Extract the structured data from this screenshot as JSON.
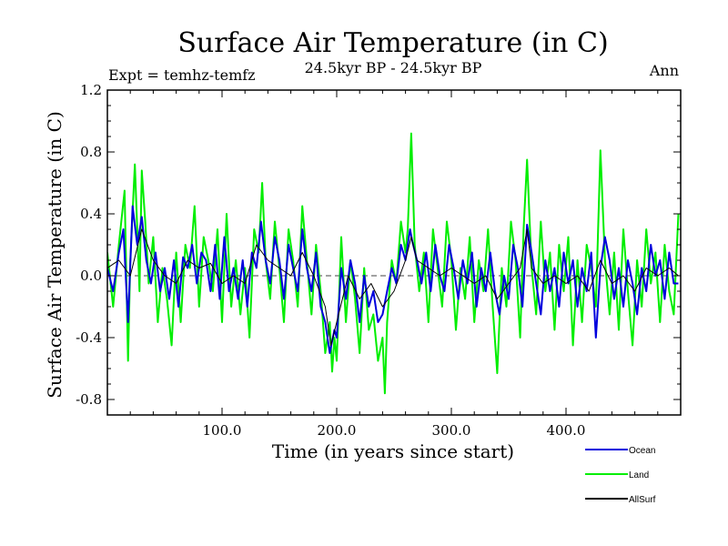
{
  "chart_data": {
    "type": "line",
    "title": "Surface Air Temperature (in C)",
    "subtitle": "24.5kyr BP - 24.5kyr BP",
    "left_label": "Expt = temhz-temfz",
    "right_label": "Ann",
    "xlabel": "Time (in years since start)",
    "ylabel": "Surface Air Temperature (in C)",
    "xlim": [
      0,
      500
    ],
    "ylim": [
      -0.9,
      1.2
    ],
    "x_ticks": [
      {
        "value": 100,
        "label": "100.0"
      },
      {
        "value": 200,
        "label": "200.0"
      },
      {
        "value": 300,
        "label": "300.0"
      },
      {
        "value": 400,
        "label": "400.0"
      }
    ],
    "y_ticks": [
      {
        "value": 1.2,
        "label": "1.2"
      },
      {
        "value": 0.8,
        "label": "0.8"
      },
      {
        "value": 0.4,
        "label": "0.4"
      },
      {
        "value": 0.0,
        "label": "0.0"
      },
      {
        "value": -0.4,
        "label": "-0.4"
      },
      {
        "value": -0.8,
        "label": "-0.8"
      }
    ],
    "zero_line": true,
    "series": [
      {
        "name": "Land",
        "color": "#00ee00",
        "x": [
          0,
          5,
          10,
          15,
          18,
          20,
          24,
          28,
          30,
          33,
          36,
          40,
          44,
          48,
          52,
          56,
          60,
          64,
          68,
          72,
          76,
          80,
          84,
          88,
          92,
          96,
          100,
          104,
          108,
          112,
          116,
          120,
          124,
          128,
          132,
          135,
          138,
          142,
          146,
          150,
          154,
          158,
          162,
          166,
          170,
          174,
          178,
          182,
          186,
          190,
          194,
          196,
          198,
          200,
          204,
          208,
          212,
          216,
          220,
          224,
          228,
          232,
          236,
          240,
          242,
          244,
          248,
          252,
          256,
          260,
          262,
          265,
          268,
          272,
          276,
          280,
          284,
          288,
          292,
          296,
          300,
          304,
          308,
          312,
          316,
          320,
          324,
          328,
          332,
          336,
          340,
          344,
          348,
          352,
          356,
          360,
          363,
          366,
          370,
          374,
          378,
          382,
          386,
          390,
          394,
          398,
          402,
          406,
          410,
          414,
          418,
          422,
          426,
          430,
          434,
          438,
          442,
          446,
          450,
          454,
          458,
          462,
          466,
          470,
          474,
          478,
          482,
          486,
          490,
          494,
          498
        ],
        "values": [
          0.15,
          -0.2,
          0.2,
          0.55,
          -0.55,
          0.1,
          0.72,
          -0.1,
          0.68,
          0.35,
          -0.05,
          0.25,
          -0.3,
          0.05,
          -0.15,
          -0.45,
          0.15,
          -0.3,
          0.2,
          0.05,
          0.45,
          -0.2,
          0.25,
          0.1,
          -0.1,
          0.3,
          -0.3,
          0.4,
          -0.2,
          0.1,
          -0.25,
          0.05,
          -0.4,
          0.3,
          0.15,
          0.6,
          0.1,
          -0.15,
          0.35,
          0.05,
          -0.3,
          0.3,
          0.1,
          -0.2,
          0.45,
          0.1,
          -0.25,
          0.2,
          -0.1,
          -0.5,
          -0.3,
          -0.62,
          -0.4,
          -0.55,
          0.25,
          -0.3,
          0.1,
          -0.15,
          -0.5,
          0.05,
          -0.35,
          -0.25,
          -0.55,
          -0.4,
          -0.76,
          -0.3,
          0.1,
          -0.05,
          0.35,
          0.15,
          0.3,
          0.92,
          0.2,
          -0.1,
          0.15,
          -0.3,
          0.3,
          0.05,
          -0.2,
          0.35,
          0.1,
          -0.35,
          0.05,
          -0.15,
          0.25,
          -0.3,
          0.1,
          -0.1,
          0.3,
          -0.2,
          -0.63,
          0.05,
          -0.2,
          0.35,
          0.1,
          -0.4,
          0.3,
          0.75,
          0.05,
          -0.25,
          0.35,
          -0.1,
          0.15,
          -0.35,
          0.2,
          -0.1,
          0.25,
          -0.45,
          0.1,
          -0.3,
          0.2,
          0.05,
          -0.2,
          0.81,
          0.1,
          -0.25,
          0.15,
          -0.35,
          0.3,
          -0.1,
          -0.45,
          0.1,
          -0.2,
          0.3,
          -0.05,
          0.15,
          -0.3,
          0.2,
          -0.1,
          -0.25,
          0.4
        ]
      },
      {
        "name": "Ocean",
        "color": "#0000dd",
        "x": [
          0,
          5,
          10,
          14,
          18,
          22,
          26,
          30,
          34,
          38,
          42,
          46,
          50,
          54,
          58,
          62,
          66,
          70,
          74,
          78,
          82,
          86,
          90,
          94,
          98,
          102,
          106,
          110,
          114,
          118,
          122,
          126,
          130,
          134,
          138,
          142,
          146,
          150,
          154,
          158,
          162,
          166,
          170,
          174,
          178,
          182,
          186,
          190,
          194,
          198,
          200,
          204,
          208,
          212,
          216,
          220,
          224,
          228,
          232,
          236,
          240,
          244,
          248,
          252,
          256,
          260,
          264,
          266,
          270,
          274,
          278,
          282,
          286,
          290,
          294,
          298,
          302,
          306,
          310,
          314,
          318,
          322,
          326,
          330,
          334,
          338,
          342,
          346,
          350,
          354,
          358,
          362,
          366,
          370,
          374,
          378,
          382,
          386,
          390,
          394,
          398,
          402,
          406,
          410,
          414,
          418,
          422,
          426,
          430,
          434,
          438,
          442,
          446,
          450,
          454,
          458,
          462,
          466,
          470,
          474,
          478,
          482,
          486,
          490,
          494,
          498
        ],
        "values": [
          0.05,
          -0.1,
          0.15,
          0.3,
          -0.3,
          0.45,
          0.2,
          0.38,
          0.1,
          -0.05,
          0.15,
          -0.1,
          0.05,
          -0.15,
          0.1,
          -0.2,
          0.12,
          0.05,
          0.2,
          -0.05,
          0.15,
          0.1,
          -0.1,
          0.2,
          -0.15,
          0.25,
          -0.1,
          0.05,
          -0.15,
          0.1,
          -0.2,
          0.15,
          0.05,
          0.35,
          0.1,
          -0.05,
          0.25,
          0.1,
          -0.15,
          0.2,
          0.05,
          -0.1,
          0.3,
          0.05,
          -0.1,
          0.15,
          -0.2,
          -0.3,
          -0.5,
          -0.35,
          -0.4,
          0.05,
          -0.15,
          0.1,
          -0.05,
          -0.3,
          0.0,
          -0.2,
          -0.1,
          -0.3,
          -0.25,
          -0.1,
          0.05,
          -0.05,
          0.2,
          0.1,
          0.3,
          0.22,
          0.1,
          -0.05,
          0.15,
          -0.1,
          0.2,
          0.0,
          -0.1,
          0.2,
          0.05,
          -0.15,
          0.1,
          -0.05,
          0.15,
          -0.2,
          0.05,
          -0.1,
          0.15,
          -0.1,
          -0.25,
          0.0,
          -0.15,
          0.2,
          0.05,
          -0.2,
          0.33,
          0.15,
          -0.05,
          -0.25,
          0.1,
          -0.1,
          0.05,
          -0.2,
          0.15,
          -0.05,
          0.1,
          -0.2,
          0.05,
          -0.1,
          0.15,
          -0.4,
          0.05,
          0.25,
          0.1,
          -0.15,
          0.05,
          -0.2,
          0.1,
          -0.05,
          -0.25,
          0.05,
          -0.1,
          0.2,
          0.0,
          0.1,
          -0.15,
          0.15,
          -0.05,
          -0.05
        ]
      },
      {
        "name": "AllSurf",
        "color": "#000000",
        "x": [
          0,
          10,
          20,
          30,
          40,
          50,
          60,
          70,
          80,
          90,
          100,
          110,
          120,
          130,
          140,
          150,
          160,
          170,
          180,
          190,
          195,
          200,
          210,
          220,
          230,
          240,
          250,
          260,
          265,
          270,
          280,
          290,
          300,
          310,
          320,
          330,
          340,
          350,
          360,
          366,
          370,
          380,
          390,
          400,
          410,
          420,
          430,
          440,
          450,
          460,
          470,
          480,
          490,
          498
        ],
        "values": [
          0.05,
          0.1,
          0.0,
          0.3,
          0.1,
          0.0,
          -0.05,
          0.1,
          0.05,
          0.08,
          -0.05,
          0.0,
          -0.05,
          0.2,
          0.1,
          0.05,
          0.0,
          0.15,
          0.0,
          -0.2,
          -0.45,
          -0.3,
          0.0,
          -0.15,
          -0.05,
          -0.2,
          -0.1,
          0.1,
          0.25,
          0.1,
          0.05,
          0.0,
          0.05,
          0.0,
          -0.05,
          0.0,
          -0.15,
          -0.05,
          0.05,
          0.3,
          0.05,
          -0.05,
          0.0,
          -0.05,
          0.0,
          -0.1,
          0.1,
          -0.05,
          0.0,
          -0.1,
          0.05,
          0.0,
          0.05,
          0.0
        ]
      }
    ],
    "legend": {
      "placement": "bottom-right",
      "entries": [
        {
          "name": "Ocean",
          "color": "#0000dd"
        },
        {
          "name": "Land",
          "color": "#00ee00"
        },
        {
          "name": "AllSurf",
          "color": "#000000"
        }
      ]
    }
  }
}
